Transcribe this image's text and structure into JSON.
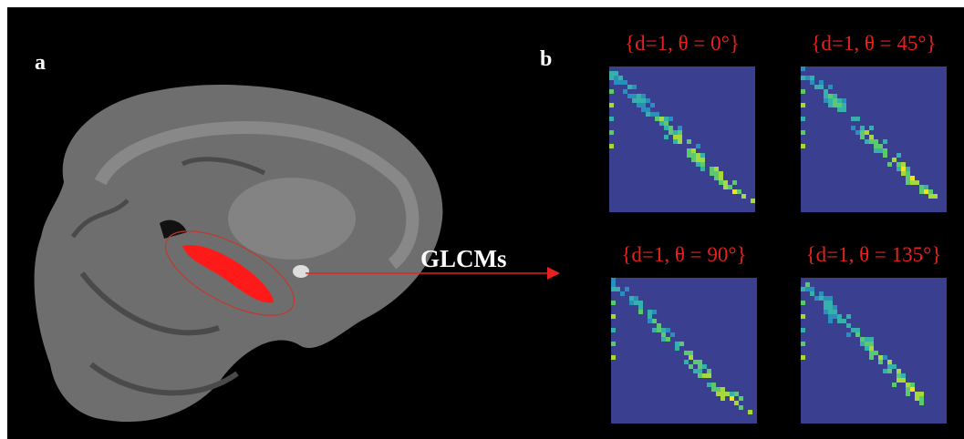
{
  "panels": {
    "a": {
      "label": "a",
      "annotation": "GLCMs"
    },
    "b": {
      "label": "b",
      "matrices": [
        {
          "caption": "{d=1, θ = 0°}"
        },
        {
          "caption": "{d=1, θ = 45°}"
        },
        {
          "caption": "{d=1, θ = 90°}"
        },
        {
          "caption": "{d=1, θ = 135°}"
        }
      ]
    }
  }
}
